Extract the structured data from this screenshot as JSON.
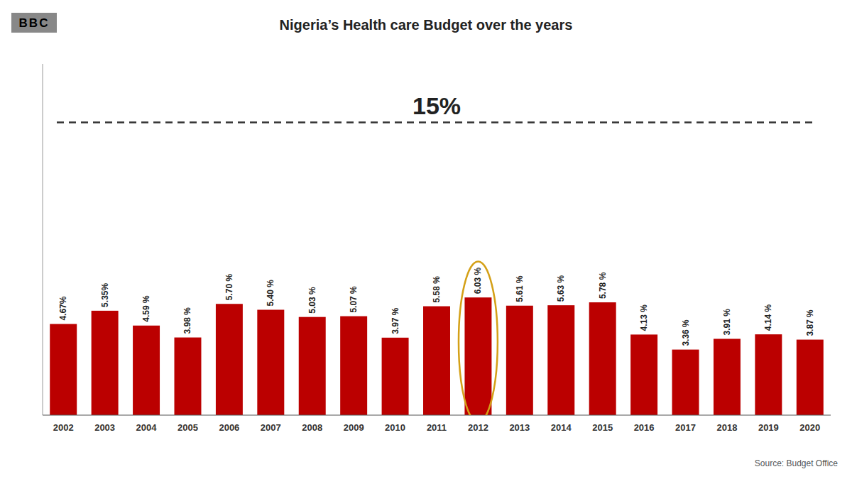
{
  "chart_data": {
    "type": "bar",
    "title": "Nigeria’s Health care Budget over the years",
    "categories": [
      "2002",
      "2003",
      "2004",
      "2005",
      "2006",
      "2007",
      "2008",
      "2009",
      "2010",
      "2011",
      "2012",
      "2013",
      "2014",
      "2015",
      "2016",
      "2017",
      "2018",
      "2019",
      "2020"
    ],
    "values": [
      4.67,
      5.35,
      4.59,
      3.98,
      5.7,
      5.4,
      5.03,
      5.07,
      3.97,
      5.58,
      6.03,
      5.61,
      5.63,
      5.78,
      4.13,
      3.36,
      3.91,
      4.14,
      3.87
    ],
    "value_labels": [
      "4.67%",
      "5.35%",
      "4.59 %",
      "3.98 %",
      "5.70 %",
      "5.40 %",
      "5.03 %",
      "5.07 %",
      "3.97 %",
      "5.58 %",
      "6.03 %",
      "5.61 %",
      "5.63 %",
      "5.78 %",
      "4.13 %",
      "3.36 %",
      "3.91 %",
      "4.14 %",
      "3.87 %"
    ],
    "data_labels": true,
    "color": "#bb0000",
    "ylim": [
      0,
      18
    ],
    "tick_labels": "x",
    "grid": false,
    "annotations": [
      {
        "type": "hline",
        "y": 15,
        "text": "15%",
        "line_style": "dashed"
      },
      {
        "type": "ellipse",
        "category": "2012",
        "color": "#d4a017"
      },
      {
        "type": "text",
        "text": "Source: Budget Office"
      },
      {
        "type": "logo",
        "text": "BBC"
      }
    ]
  }
}
